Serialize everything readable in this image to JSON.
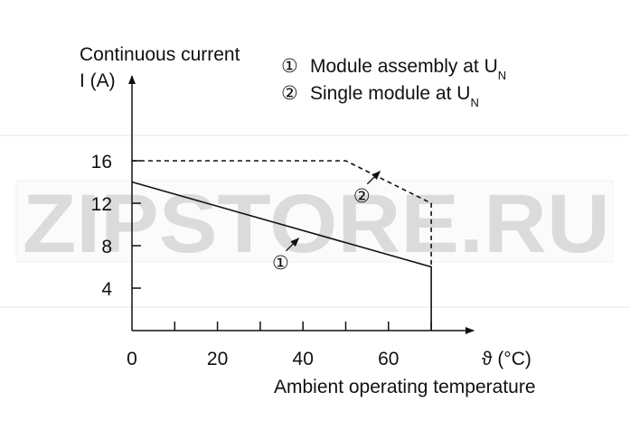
{
  "chart_data": {
    "type": "line",
    "ylabel_line1": "Continuous current",
    "ylabel_line2": "I (A)",
    "xlabel": "Ambient operating temperature",
    "x_unit_label": "ϑ (°C)",
    "xlim": [
      0,
      80
    ],
    "ylim": [
      0,
      20
    ],
    "x_ticks": [
      0,
      10,
      20,
      30,
      40,
      50,
      60,
      70
    ],
    "x_tick_labels": [
      {
        "value": 0,
        "text": "0"
      },
      {
        "value": 20,
        "text": "20"
      },
      {
        "value": 40,
        "text": "40"
      },
      {
        "value": 60,
        "text": "60"
      }
    ],
    "y_ticks": [
      4,
      8,
      12,
      16
    ],
    "y_tick_labels": [
      {
        "value": 4,
        "text": "4"
      },
      {
        "value": 8,
        "text": "8"
      },
      {
        "value": 12,
        "text": "12"
      },
      {
        "value": 16,
        "text": "16"
      }
    ],
    "series": [
      {
        "marker": "①",
        "label": "Module assembly at U",
        "subscript": "N",
        "style": "solid",
        "points": [
          {
            "x": 0,
            "y": 14
          },
          {
            "x": 70,
            "y": 6
          },
          {
            "x": 70,
            "y": 0
          }
        ],
        "annotation_at": {
          "x": 39,
          "y": 8.7
        }
      },
      {
        "marker": "②",
        "label": "Single module at U",
        "subscript": "N",
        "style": "dashed",
        "points": [
          {
            "x": 0,
            "y": 16
          },
          {
            "x": 50,
            "y": 16
          },
          {
            "x": 70,
            "y": 12
          },
          {
            "x": 70,
            "y": 6
          }
        ],
        "annotation_at": {
          "x": 58,
          "y": 15
        }
      }
    ],
    "grid": false,
    "legend_placement": "top-right",
    "watermark": "ZIPSTORE.RU"
  }
}
